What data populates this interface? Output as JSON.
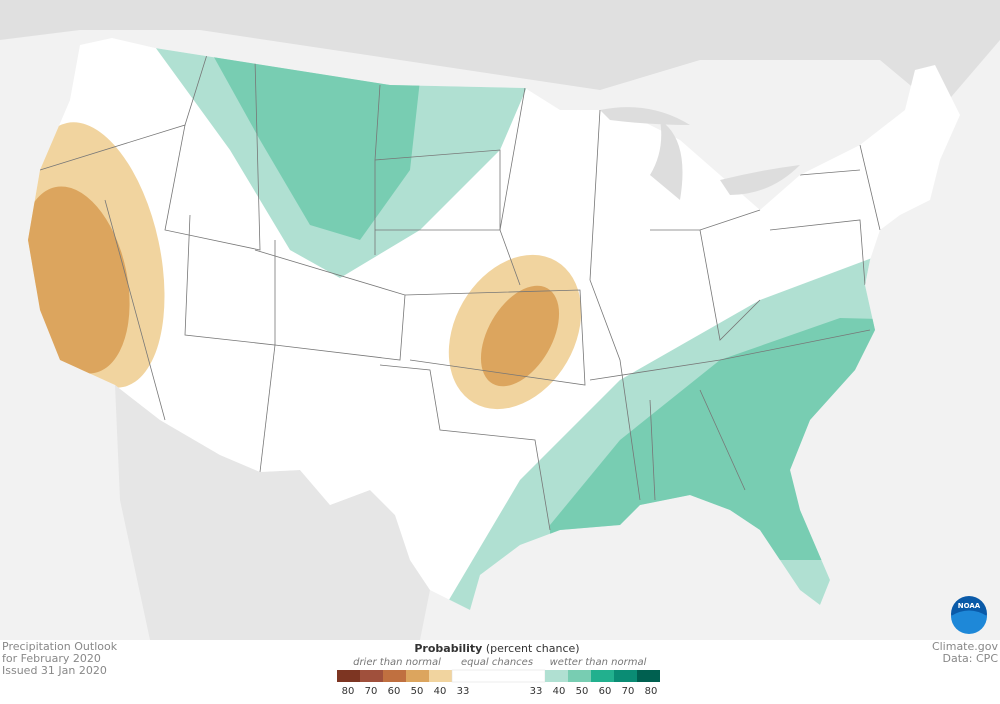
{
  "caption": {
    "title": "Precipitation Outlook",
    "period": "for February 2020",
    "issued": "Issued 31 Jan 2020"
  },
  "credit": {
    "site": "Climate.gov",
    "source": "Data: CPC"
  },
  "logo": "NOAA",
  "legend": {
    "title": "Probability",
    "note": "(percent chance)",
    "drier": "drier than normal",
    "equal": "equal chances",
    "wetter": "wetter than normal",
    "drier_labels": [
      80,
      70,
      60,
      50,
      40,
      33
    ],
    "wetter_labels": [
      33,
      40,
      50,
      60,
      70,
      80
    ],
    "drier_colors": [
      "#7d3522",
      "#a0503c",
      "#c07040",
      "#dca55e",
      "#f1d49f"
    ],
    "equal_color": "#ffffff",
    "wetter_colors": [
      "#b0e0d2",
      "#78cdb2",
      "#22b08e",
      "#0a8c74",
      "#006050"
    ]
  }
}
